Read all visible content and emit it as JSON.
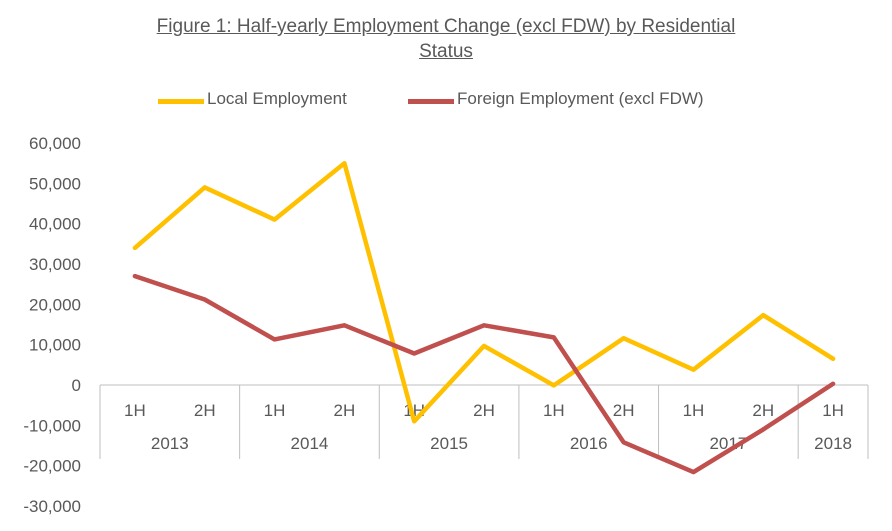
{
  "chart_data": {
    "type": "line",
    "title_line1": "Figure 1: Half-yearly Employment Change  (excl FDW) by Residential",
    "title_line2": "Status",
    "categories": [
      "1H",
      "2H",
      "1H",
      "2H",
      "1H",
      "2H",
      "1H",
      "2H",
      "1H",
      "2H",
      "1H"
    ],
    "year_groups": [
      {
        "year": "2013",
        "count": 2
      },
      {
        "year": "2014",
        "count": 2
      },
      {
        "year": "2015",
        "count": 2
      },
      {
        "year": "2016",
        "count": 2
      },
      {
        "year": "2017",
        "count": 2
      },
      {
        "year": "2018",
        "count": 1
      }
    ],
    "series": [
      {
        "name": "Local Employment",
        "color": "#FFC000",
        "values": [
          34000,
          49000,
          41000,
          55000,
          -9000,
          9700,
          -100,
          11600,
          3800,
          17300,
          6500
        ]
      },
      {
        "name": "Foreign Employment (excl FDW)",
        "color": "#C0504D",
        "values": [
          27000,
          21200,
          11300,
          14800,
          7800,
          14800,
          11800,
          -14200,
          -21600,
          -11000,
          300
        ]
      }
    ],
    "ylim": [
      -30000,
      60000
    ],
    "yticks": [
      60000,
      50000,
      40000,
      30000,
      20000,
      10000,
      0,
      -10000,
      -20000,
      -30000
    ],
    "ytick_labels": [
      "60,000",
      "50,000",
      "40,000",
      "30,000",
      "20,000",
      "10,000",
      "0",
      "-10,000",
      "-20,000",
      "-30,000"
    ],
    "legend_position": "top",
    "grid": false
  }
}
